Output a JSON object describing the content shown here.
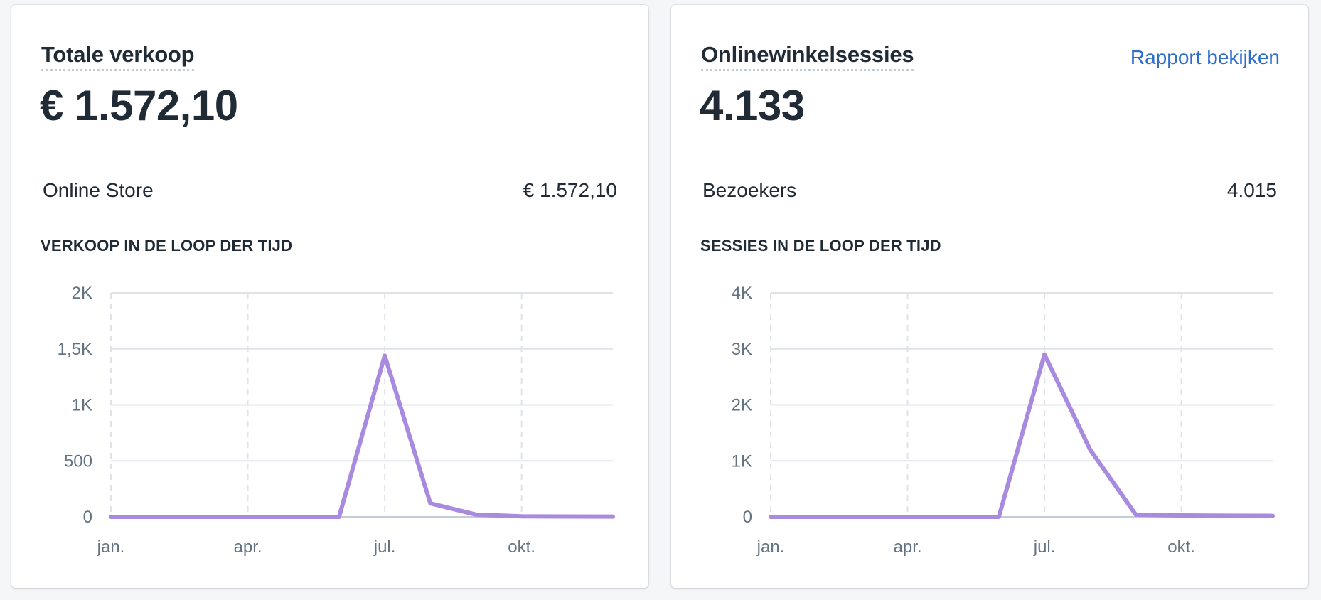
{
  "cards": [
    {
      "title": "Totale verkoop",
      "value": "€ 1.572,10",
      "breakdown": {
        "label": "Online Store",
        "value": "€ 1.572,10"
      },
      "section_label": "VERKOOP IN DE LOOP DER TIJD"
    },
    {
      "title": "Onlinewinkelsessies",
      "link": "Rapport bekijken",
      "value": "4.133",
      "breakdown": {
        "label": "Bezoekers",
        "value": "4.015"
      },
      "section_label": "SESSIES IN DE LOOP DER TIJD"
    }
  ],
  "colors": {
    "line": "#a88bdf",
    "grid": "#dfe3e8",
    "link": "#2c6ecb",
    "axis_text": "#637381"
  },
  "chart_data": [
    {
      "type": "line",
      "xlabel": "",
      "ylabel": "",
      "x_ticks": [
        "jan.",
        "apr.",
        "jul.",
        "okt."
      ],
      "y_ticks": [
        "0",
        "500",
        "1K",
        "1,5K",
        "2K"
      ],
      "ylim": [
        0,
        2000
      ],
      "xlim": [
        1,
        12
      ],
      "x": [
        1,
        2,
        3,
        4,
        5,
        6,
        7,
        8,
        9,
        10,
        11,
        12
      ],
      "series": [
        {
          "values": [
            0,
            0,
            0,
            0,
            0,
            0,
            1440,
            120,
            20,
            5,
            3,
            2
          ]
        }
      ],
      "grid": true
    },
    {
      "type": "line",
      "xlabel": "",
      "ylabel": "",
      "x_ticks": [
        "jan.",
        "apr.",
        "jul.",
        "okt."
      ],
      "y_ticks": [
        "0",
        "1K",
        "2K",
        "3K",
        "4K"
      ],
      "ylim": [
        0,
        4000
      ],
      "xlim": [
        1,
        12
      ],
      "x": [
        1,
        2,
        3,
        4,
        5,
        6,
        7,
        8,
        9,
        10,
        11,
        12
      ],
      "series": [
        {
          "values": [
            0,
            0,
            0,
            0,
            0,
            0,
            2900,
            1200,
            40,
            25,
            20,
            18
          ]
        }
      ],
      "grid": true
    }
  ]
}
